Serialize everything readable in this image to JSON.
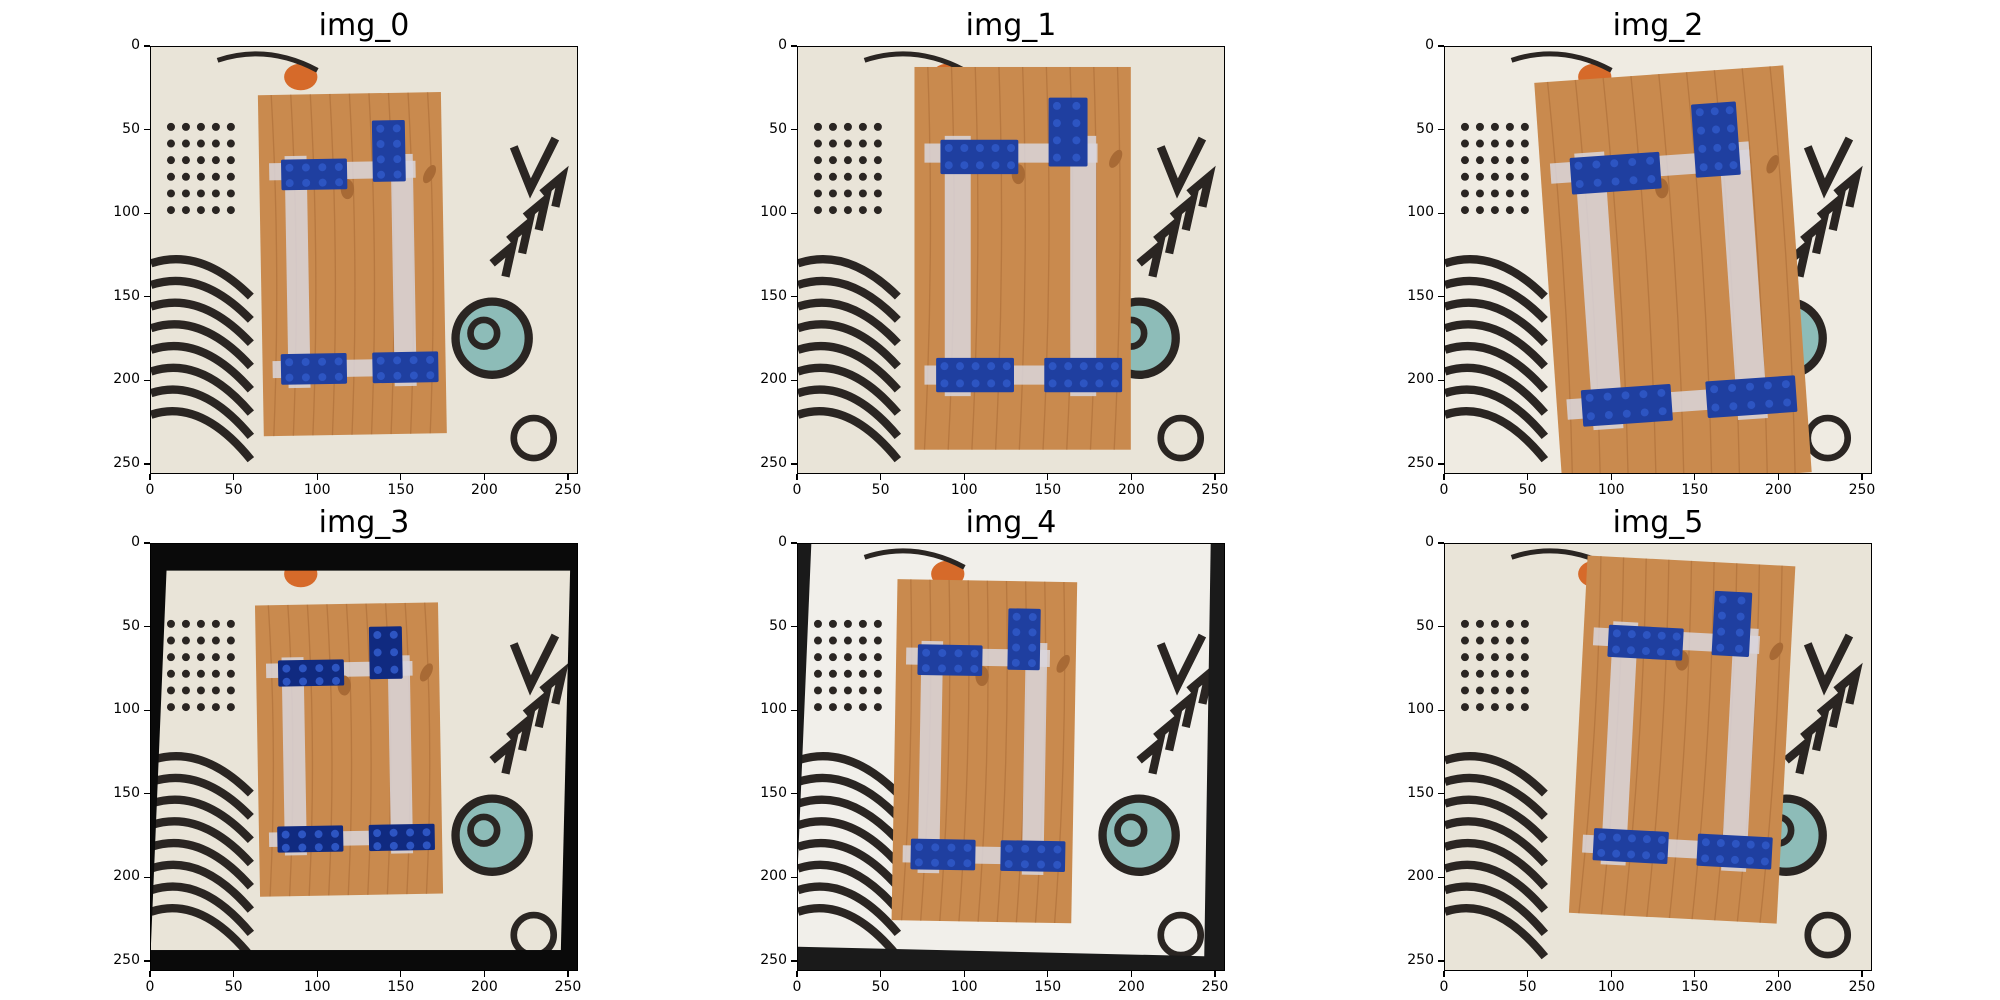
{
  "figure": {
    "panels": [
      {
        "title": "img_0",
        "variant": "plain"
      },
      {
        "title": "img_1",
        "variant": "zoom"
      },
      {
        "title": "img_2",
        "variant": "bright-rotate"
      },
      {
        "title": "img_3",
        "variant": "dark-border"
      },
      {
        "title": "img_4",
        "variant": "washed-rotate"
      },
      {
        "title": "img_5",
        "variant": "rotate"
      }
    ],
    "x_ticks": [
      "0",
      "50",
      "100",
      "150",
      "200",
      "250"
    ],
    "y_ticks": [
      "0",
      "50",
      "100",
      "150",
      "200",
      "250"
    ],
    "x_tick_values": [
      0,
      50,
      100,
      150,
      200,
      250
    ],
    "y_tick_values": [
      0,
      50,
      100,
      150,
      200,
      250
    ],
    "image_extent": [
      0,
      256
    ],
    "colors": {
      "background": "#e9e4d8",
      "wood": "#c98a4e",
      "wood_dark": "#a86a35",
      "tape": "#d9d6dd",
      "lego": "#1f3fa0",
      "lego_light": "#2d55c2",
      "pattern": "#2a2522",
      "orange": "#d66a2a",
      "teal": "#8dbcb8",
      "border_dark": "#0a0a0a"
    }
  }
}
